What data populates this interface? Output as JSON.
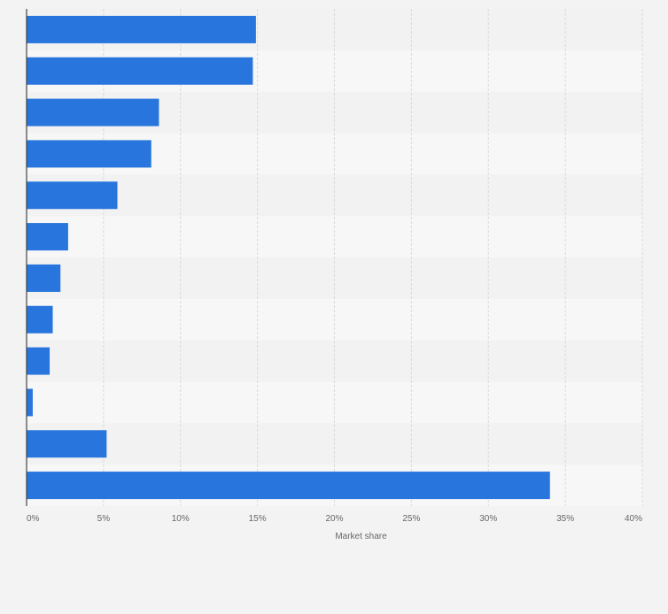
{
  "chart_data": {
    "type": "bar",
    "orientation": "horizontal",
    "categories": [
      "",
      "",
      "",
      "",
      "",
      "",
      "",
      "",
      "",
      "",
      "",
      ""
    ],
    "values": [
      14.9,
      14.7,
      8.6,
      8.1,
      5.9,
      2.7,
      2.2,
      1.7,
      1.5,
      0.4,
      5.2,
      34.0
    ],
    "title": "",
    "xlabel": "Market share",
    "ylabel": "",
    "xlim": [
      0,
      40
    ],
    "xticks": [
      0,
      5,
      10,
      15,
      20,
      25,
      30,
      35,
      40
    ],
    "xtick_labels": [
      "0%",
      "5%",
      "10%",
      "15%",
      "20%",
      "25%",
      "30%",
      "35%",
      "40%"
    ],
    "grid": true,
    "legend": "none"
  },
  "colors": {
    "bar": "#2876dd",
    "background": "#f3f3f3",
    "band_light": "#f7f7f7",
    "band_dark": "#f2f2f2",
    "grid": "#d9d9d9",
    "axis": "#444444",
    "tick_text": "#666666"
  }
}
